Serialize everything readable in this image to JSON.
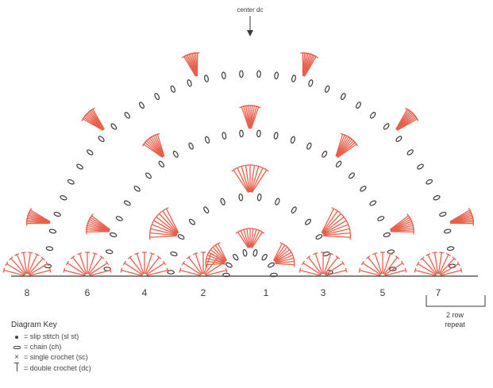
{
  "diagram": {
    "center_label": "center dc",
    "row_numbers": [
      "8",
      "6",
      "4",
      "2",
      "1",
      "3",
      "5",
      "7"
    ],
    "repeat_label_line1": "2 row",
    "repeat_label_line2": "repeat"
  },
  "key": {
    "title": "Diagram Key",
    "items": [
      {
        "symbol": "slip-stitch",
        "text": "= slip stitch (sl st)"
      },
      {
        "symbol": "chain",
        "text": "= chain (ch)"
      },
      {
        "symbol": "single-crochet",
        "text": "= single crochet (sc)"
      },
      {
        "symbol": "double-crochet",
        "text": "= double crochet (dc)"
      }
    ]
  },
  "colors": {
    "red": "#e8604c",
    "dark": "#3a3a3a",
    "text": "#3a3a3a"
  }
}
